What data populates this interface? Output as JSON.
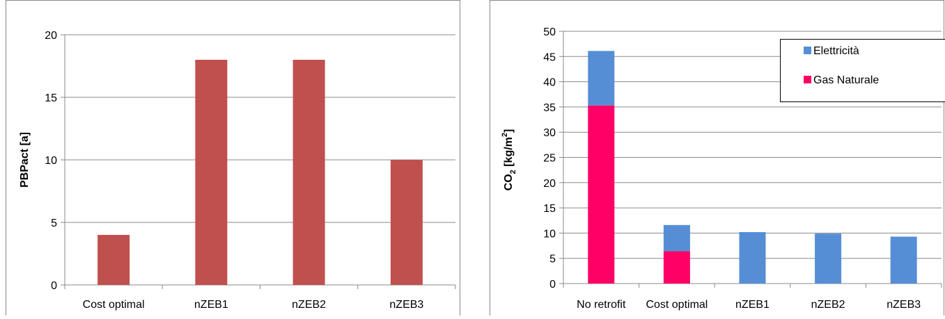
{
  "colors": {
    "left_bar": "#c0504d",
    "elettricita": "#558ed5",
    "gas_naturale": "#ff0066",
    "grid": "#888888",
    "axis": "#888888",
    "border": "#888888"
  },
  "chart_data": [
    {
      "type": "bar",
      "categories": [
        "Cost optimal",
        "nZEB1",
        "nZEB2",
        "nZEB3"
      ],
      "values": [
        4,
        18,
        18,
        10
      ],
      "ylabel": "PBPact [a]",
      "ylim": [
        0,
        20
      ],
      "yticks": [
        "0",
        "5",
        "10",
        "15",
        "20"
      ],
      "grid": true,
      "legend": null
    },
    {
      "type": "bar",
      "stacked": true,
      "categories": [
        "No retrofit",
        "Cost optimal",
        "nZEB1",
        "nZEB2",
        "nZEB3"
      ],
      "series": [
        {
          "name": "Gas Naturale",
          "color": "#ff0066",
          "values": [
            35.3,
            6.4,
            0,
            0,
            0
          ]
        },
        {
          "name": "Elettricità",
          "color": "#558ed5",
          "values": [
            10.8,
            5.2,
            10.2,
            9.9,
            9.3
          ]
        }
      ],
      "ylabel": {
        "prefix": "CO",
        "sub": "2",
        "mid": " [kg/m",
        "sup": "2",
        "suffix": "]"
      },
      "ylim": [
        0,
        50
      ],
      "yticks": [
        "0",
        "5",
        "10",
        "15",
        "20",
        "25",
        "30",
        "35",
        "40",
        "45",
        "50"
      ],
      "grid": true,
      "legend": "top-right",
      "legend_entries": [
        "Elettricità",
        "Gas Naturale"
      ]
    }
  ]
}
